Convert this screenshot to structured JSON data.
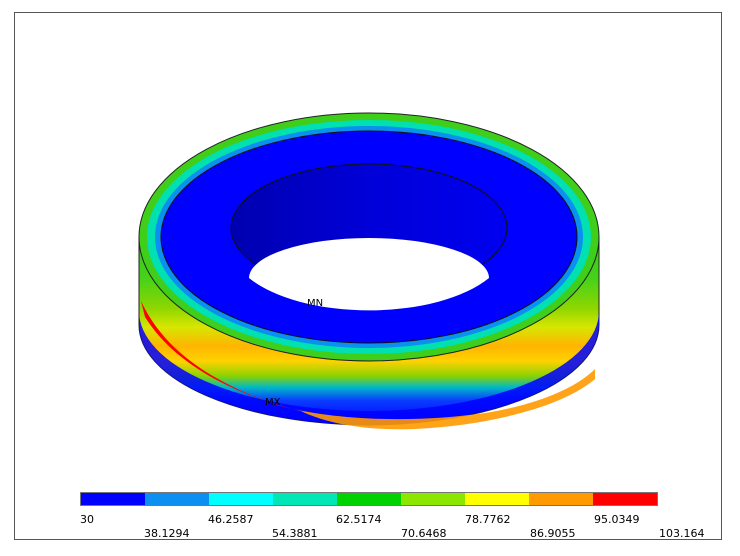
{
  "markers": {
    "min": "MN",
    "max": "MX"
  },
  "contour_colors": [
    "#0000ff",
    "#0b8ff0",
    "#00ffff",
    "#00e6b4",
    "#00d200",
    "#8ce600",
    "#ffff00",
    "#ff9a00",
    "#ff0000"
  ],
  "legend": {
    "ticks_top": [
      "30",
      "46.2587",
      "62.5174",
      "78.7762",
      "95.0349"
    ],
    "ticks_bottom": [
      "38.1294",
      "54.3881",
      "70.6468",
      "86.9055",
      "103.164"
    ]
  }
}
